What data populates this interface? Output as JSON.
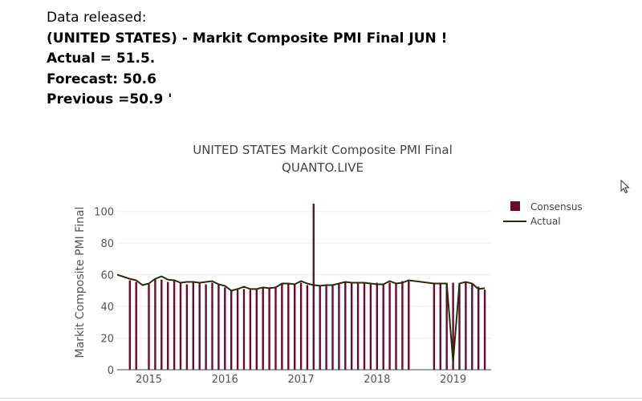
{
  "release": {
    "header": "Data released:",
    "title": "(UNITED STATES) - Markit Composite PMI Final JUN !",
    "actual": "Actual = 51.5.",
    "forecast": "Forecast: 50.6",
    "previous": "Previous =50.9 '"
  },
  "chart_data": {
    "type": "bar",
    "title": "UNITED STATES Markit Composite PMI Final",
    "subtitle": "QUANTO.LIVE",
    "xlabel": "",
    "ylabel": "Markit Composite PMI Final",
    "ylim": [
      0,
      110
    ],
    "yticks": [
      0,
      20,
      40,
      60,
      80,
      100
    ],
    "xticks": [
      "2015",
      "2016",
      "2017",
      "2018",
      "2019"
    ],
    "xlim": [
      "2014-08",
      "2019-07"
    ],
    "grid": true,
    "legend_position": "top-right",
    "series": [
      {
        "name": "Consensus",
        "type": "bar",
        "color": "#6b0a2e",
        "x": [
          "2014-10",
          "2014-11",
          "2015-01",
          "2015-02",
          "2015-03",
          "2015-04",
          "2015-05",
          "2015-06",
          "2015-07",
          "2015-08",
          "2015-09",
          "2015-10",
          "2015-11",
          "2015-12",
          "2016-01",
          "2016-02",
          "2016-03",
          "2016-04",
          "2016-05",
          "2016-06",
          "2016-07",
          "2016-08",
          "2016-09",
          "2016-10",
          "2016-11",
          "2016-12",
          "2017-01",
          "2017-02",
          "2017-03",
          "2017-04",
          "2017-05",
          "2017-06",
          "2017-07",
          "2017-08",
          "2017-09",
          "2017-10",
          "2017-11",
          "2017-12",
          "2018-01",
          "2018-02",
          "2018-03",
          "2018-04",
          "2018-05",
          "2018-06",
          "2018-10",
          "2018-11",
          "2018-12",
          "2019-01",
          "2019-02",
          "2019-03",
          "2019-04",
          "2019-05",
          "2019-06"
        ],
        "values": [
          56.5,
          55.5,
          54,
          57.5,
          57,
          55.5,
          56,
          55,
          54,
          56,
          55,
          54,
          55,
          53.5,
          52,
          50,
          50.5,
          51,
          50.5,
          51,
          51.5,
          52,
          52.5,
          54.5,
          54,
          54,
          55,
          53.5,
          105,
          53,
          53.5,
          53.5,
          54,
          55,
          54.5,
          55,
          54.5,
          54,
          55,
          54,
          55,
          54.5,
          56,
          56,
          54.5,
          55,
          54.5,
          55,
          54.5,
          55,
          54,
          52.5,
          50.6
        ]
      },
      {
        "name": "Actual",
        "type": "line",
        "color": "#2e2a12",
        "x": [
          "2014-08",
          "2014-10",
          "2014-11",
          "2014-12",
          "2015-01",
          "2015-02",
          "2015-03",
          "2015-04",
          "2015-05",
          "2015-06",
          "2015-07",
          "2015-08",
          "2015-09",
          "2015-10",
          "2015-11",
          "2015-12",
          "2016-01",
          "2016-02",
          "2016-03",
          "2016-04",
          "2016-05",
          "2016-06",
          "2016-07",
          "2016-08",
          "2016-09",
          "2016-10",
          "2016-11",
          "2016-12",
          "2017-01",
          "2017-02",
          "2017-03",
          "2017-04",
          "2017-05",
          "2017-06",
          "2017-07",
          "2017-08",
          "2017-09",
          "2017-10",
          "2017-11",
          "2017-12",
          "2018-01",
          "2018-02",
          "2018-03",
          "2018-04",
          "2018-05",
          "2018-06",
          "2018-10",
          "2018-11",
          "2018-12",
          "2019-01",
          "2019-02",
          "2019-03",
          "2019-04",
          "2019-05",
          "2019-06"
        ],
        "values": [
          60,
          57.5,
          56.5,
          53.5,
          54.5,
          57.5,
          59,
          57,
          56.5,
          55,
          55.5,
          55.5,
          55,
          55.5,
          56,
          54,
          53,
          50,
          51,
          52.5,
          51,
          51,
          52,
          51.5,
          52,
          54.5,
          54.5,
          54,
          56,
          54.5,
          53.5,
          53,
          53.5,
          53.5,
          54.5,
          55.5,
          55,
          55,
          55,
          54.5,
          54,
          54,
          56,
          54.5,
          55,
          56.5,
          54.5,
          54.5,
          54.5,
          5,
          54.5,
          55.5,
          54.5,
          51,
          51.5
        ]
      }
    ]
  }
}
